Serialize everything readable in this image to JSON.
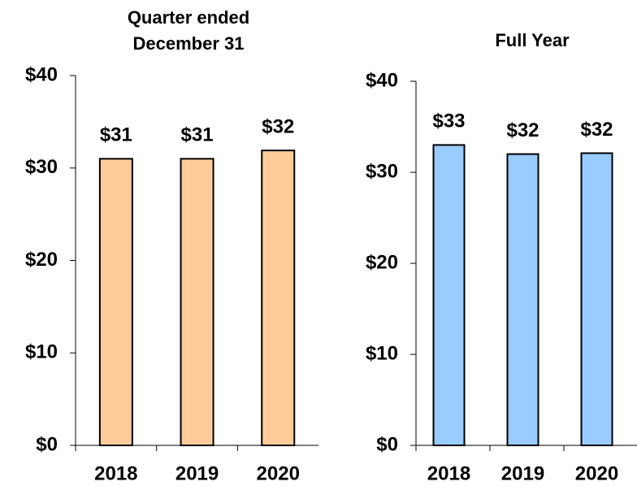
{
  "chart_data": [
    {
      "type": "bar",
      "title": "Quarter ended December 31",
      "categories": [
        "2018",
        "2019",
        "2020"
      ],
      "values": [
        31,
        31,
        31.9
      ],
      "value_labels": [
        "$31",
        "$31",
        "$32"
      ],
      "color": "#ffcc99",
      "ylim": [
        0,
        40
      ],
      "yticks": [
        {
          "value": 0,
          "label": "$0"
        },
        {
          "value": 10,
          "label": "$10"
        },
        {
          "value": 20,
          "label": "$20"
        },
        {
          "value": 30,
          "label": "$30"
        },
        {
          "value": 40,
          "label": "$40"
        }
      ]
    },
    {
      "type": "bar",
      "title": "Full Year",
      "categories": [
        "2018",
        "2019",
        "2020"
      ],
      "values": [
        33,
        32,
        32.1
      ],
      "value_labels": [
        "$33",
        "$32",
        "$32"
      ],
      "color": "#99ccff",
      "ylim": [
        0,
        40
      ],
      "yticks": [
        {
          "value": 0,
          "label": "$0"
        },
        {
          "value": 10,
          "label": "$10"
        },
        {
          "value": 20,
          "label": "$20"
        },
        {
          "value": 30,
          "label": "$30"
        },
        {
          "value": 40,
          "label": "$40"
        }
      ]
    }
  ]
}
